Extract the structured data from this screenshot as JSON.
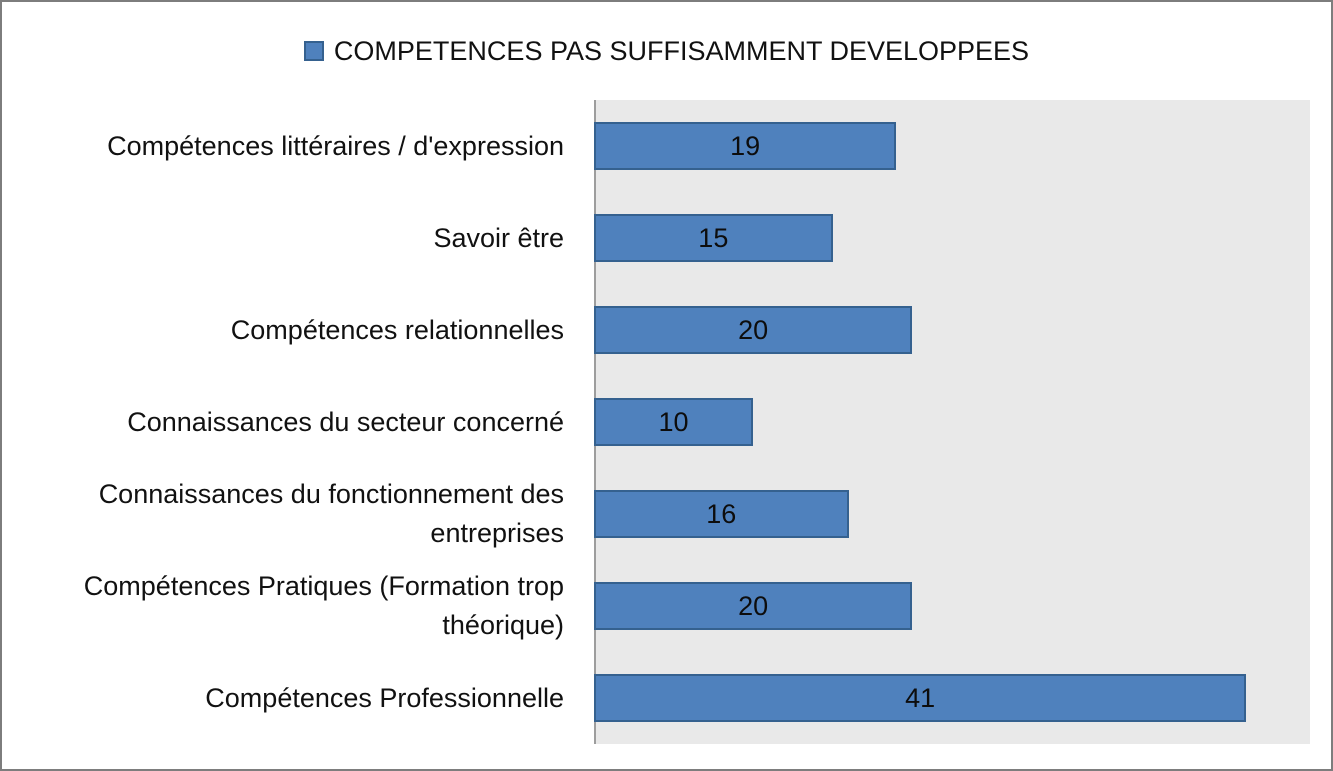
{
  "window": {
    "background": "#ffffff",
    "frame_border_color": "#7d7d7d"
  },
  "legend": {
    "label": "COMPETENCES PAS SUFFISAMMENT DEVELOPPEES",
    "marker_icon": "legend-square-marker",
    "marker_color": "#4f81bd",
    "marker_border_color": "#35618f",
    "position": "top-center"
  },
  "chart_data": {
    "type": "bar",
    "orientation": "horizontal",
    "title": "COMPETENCES PAS SUFFISAMMENT DEVELOPPEES",
    "categories": [
      "Compétences littéraires / d'expression",
      "Savoir être",
      "Compétences relationnelles",
      "Connaissances du secteur concerné",
      "Connaissances du fonctionnement des entreprises",
      "Compétences Pratiques (Formation trop théorique)",
      "Compétences Professionnelle"
    ],
    "values": [
      19,
      15,
      20,
      10,
      16,
      20,
      41
    ],
    "xlabel": "",
    "ylabel": "",
    "xlim": [
      0,
      45
    ],
    "grid": false,
    "data_labels": "inside-center",
    "legend_position": "top",
    "bar_color": "#4f81bd",
    "bar_border_color": "#35618f",
    "plot_background": "#e9e9e9",
    "axis_line_color": "#9d9d9d"
  }
}
